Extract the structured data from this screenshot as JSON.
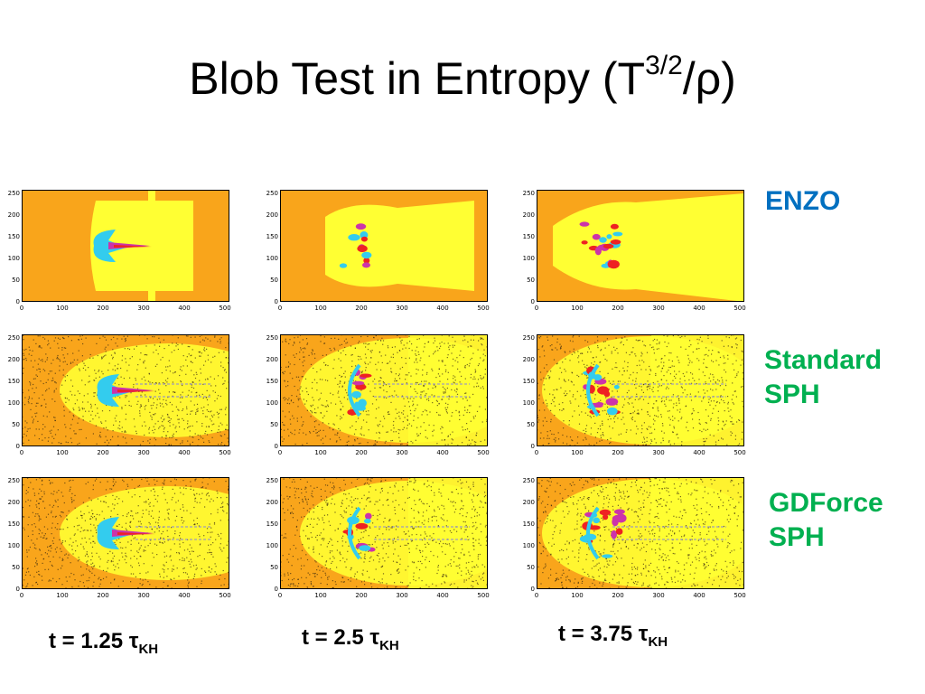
{
  "slide": {
    "title_main": "Blob Test in Entropy (T",
    "title_sup": "3/2",
    "title_tail": "/ρ)"
  },
  "rows": [
    {
      "label_line1": "ENZO",
      "label_line2": "",
      "color": "#0070c0",
      "kind": "enzo"
    },
    {
      "label_line1": "Standard",
      "label_line2": "SPH",
      "color": "#00b050",
      "kind": "sph"
    },
    {
      "label_line1": "GDForce",
      "label_line2": "SPH",
      "color": "#00b050",
      "kind": "sph"
    }
  ],
  "times": [
    {
      "text": "t = 1.25 τ",
      "sub": "KH"
    },
    {
      "text": "t = 2.5 τ",
      "sub": "KH"
    },
    {
      "text": "t = 3.75 τ",
      "sub": "KH"
    }
  ],
  "axes": {
    "y_ticks": [
      "0",
      "50",
      "100",
      "150",
      "200",
      "250"
    ],
    "x_ticks": [
      "0",
      "100",
      "200",
      "300",
      "400",
      "500"
    ]
  },
  "colors": {
    "background": "#f9a51b",
    "bright": "#ffff33",
    "cyan": "#33ccee",
    "magenta": "#cc33aa",
    "red": "#ee2222",
    "dark": "#222244"
  }
}
